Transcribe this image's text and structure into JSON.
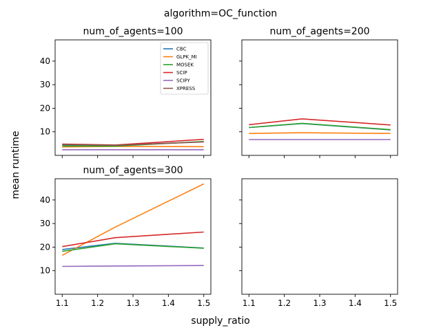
{
  "figure": {
    "suptitle": "algorithm=OC_function",
    "xlabel": "supply_ratio",
    "ylabel": "mean runtime"
  },
  "colors": {
    "CBC": "#1f77b4",
    "GLPK_MI": "#ff7f0e",
    "MOSEK": "#2ca02c",
    "SCIP": "#d62728",
    "SCIPY": "#9467bd",
    "XPRESS": "#8c564b"
  },
  "chart_data": [
    {
      "type": "line",
      "title": "num_of_agents=100",
      "x": [
        1.1,
        1.25,
        1.5
      ],
      "xticks": [
        "1.1",
        "1.2",
        "1.3",
        "1.4",
        "1.5"
      ],
      "yticks": [
        "10",
        "20",
        "30",
        "40"
      ],
      "xlim": [
        1.08,
        1.52
      ],
      "ylim": [
        0,
        49
      ],
      "legend": "top-right",
      "series": [
        {
          "name": "CBC",
          "values": [
            4.5,
            4.2,
            5.8
          ]
        },
        {
          "name": "GLPK_MI",
          "values": [
            3.6,
            3.8,
            3.7
          ]
        },
        {
          "name": "MOSEK",
          "values": [
            4.0,
            3.9,
            5.9
          ]
        },
        {
          "name": "SCIP",
          "values": [
            4.8,
            4.4,
            6.8
          ]
        },
        {
          "name": "SCIPY",
          "values": [
            2.4,
            2.4,
            2.4
          ]
        },
        {
          "name": "XPRESS",
          "values": [
            4.6,
            4.3,
            5.7
          ]
        }
      ]
    },
    {
      "type": "line",
      "title": "num_of_agents=200",
      "x": [
        1.1,
        1.25,
        1.5
      ],
      "xticks": [
        "1.1",
        "1.2",
        "1.3",
        "1.4",
        "1.5"
      ],
      "yticks": [
        "10",
        "20",
        "30",
        "40"
      ],
      "xlim": [
        1.08,
        1.52
      ],
      "ylim": [
        0,
        49
      ],
      "series": [
        {
          "name": "CBC",
          "values": [
            11.8,
            13.5,
            10.8
          ]
        },
        {
          "name": "GLPK_MI",
          "values": [
            9.3,
            9.6,
            9.3
          ]
        },
        {
          "name": "MOSEK",
          "values": [
            11.8,
            13.6,
            10.9
          ]
        },
        {
          "name": "SCIP",
          "values": [
            13.0,
            15.5,
            12.9
          ]
        },
        {
          "name": "SCIPY",
          "values": [
            6.7,
            6.7,
            6.7
          ]
        }
      ]
    },
    {
      "type": "line",
      "title": "num_of_agents=300",
      "x": [
        1.1,
        1.25,
        1.5
      ],
      "xticks": [
        "1.1",
        "1.2",
        "1.3",
        "1.4",
        "1.5"
      ],
      "yticks": [
        "10",
        "20",
        "30",
        "40"
      ],
      "xlim": [
        1.08,
        1.52
      ],
      "ylim": [
        0,
        49
      ],
      "series": [
        {
          "name": "CBC",
          "values": [
            19.0,
            21.6,
            19.6
          ]
        },
        {
          "name": "GLPK_MI",
          "values": [
            16.5,
            28.5,
            46.8
          ]
        },
        {
          "name": "MOSEK",
          "values": [
            18.2,
            21.4,
            19.5
          ]
        },
        {
          "name": "SCIP",
          "values": [
            20.2,
            24.0,
            26.4
          ]
        },
        {
          "name": "SCIPY",
          "values": [
            11.8,
            12.0,
            12.2
          ]
        }
      ]
    },
    {
      "type": "line",
      "title": "",
      "x": [],
      "xticks": [
        "1.1",
        "1.2",
        "1.3",
        "1.4",
        "1.5"
      ],
      "yticks": [
        "10",
        "20",
        "30",
        "40"
      ],
      "xlim": [
        1.08,
        1.52
      ],
      "ylim": [
        0,
        49
      ],
      "series": []
    }
  ]
}
